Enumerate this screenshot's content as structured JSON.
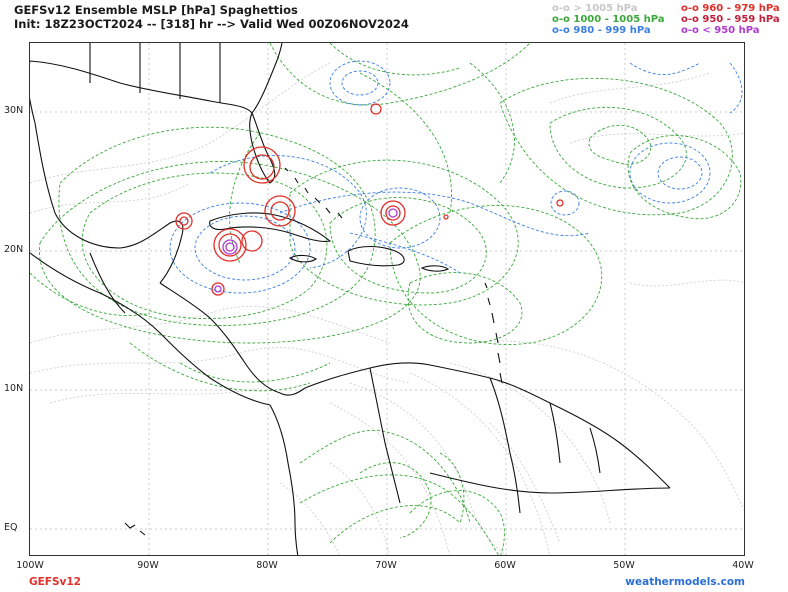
{
  "header": {
    "title": "GEFSv12 Ensemble MSLP [hPa] Spaghettios",
    "subtitle": "Init: 18Z23OCT2024 -- [318] hr --> Valid Wed 00Z06NOV2024"
  },
  "legend": {
    "items": [
      {
        "label": "o-o > 1005 hPa",
        "color": "#c8c8c8"
      },
      {
        "label": "o-o 1000 - 1005 hPa",
        "color": "#3aa83a"
      },
      {
        "label": "o-o 980 - 999 hPa",
        "color": "#3b7fe0"
      },
      {
        "label": "o-o 960 - 979 hPa",
        "color": "#e0302a"
      },
      {
        "label": "o-o 950 - 959 hPa",
        "color": "#c0203a"
      },
      {
        "label": "o-o < 950 hPa",
        "color": "#b03ad0"
      }
    ]
  },
  "axes": {
    "lat_labels": [
      "30N",
      "20N",
      "10N",
      "EQ"
    ],
    "lon_labels": [
      "100W",
      "90W",
      "80W",
      "70W",
      "60W",
      "50W",
      "40W"
    ]
  },
  "footer": {
    "model": "GEFSv12",
    "source": "weathermodels.com"
  }
}
